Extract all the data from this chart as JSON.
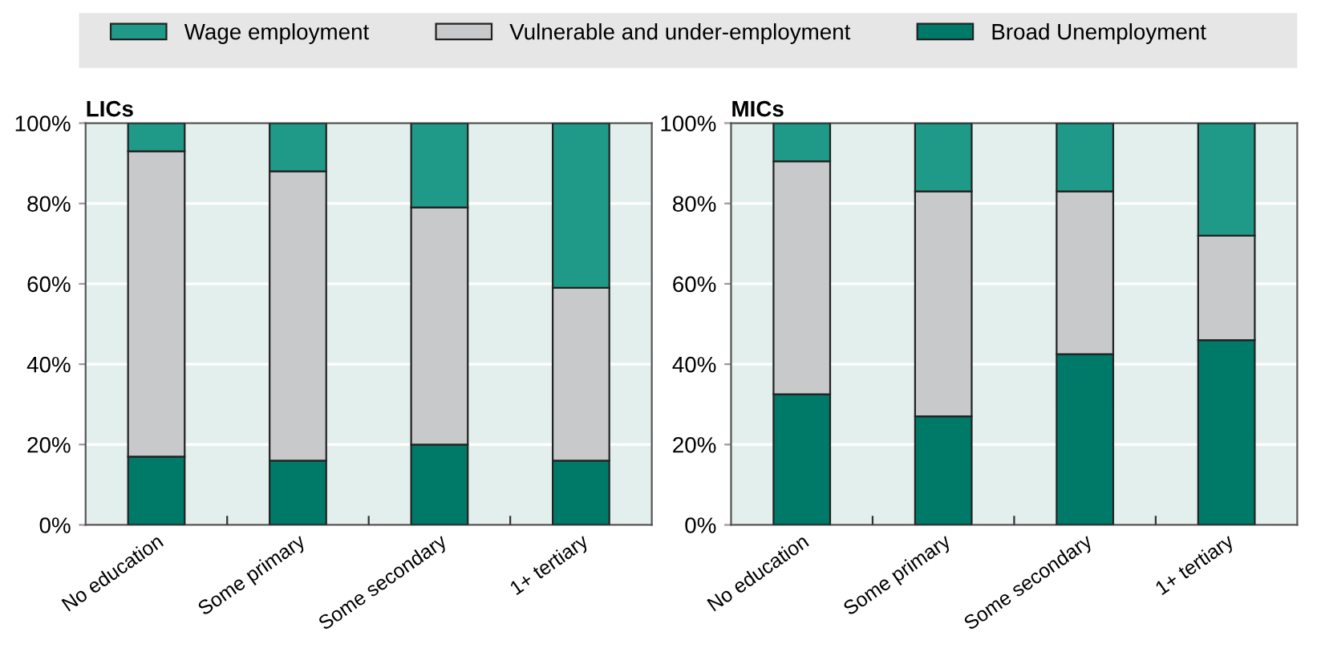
{
  "chart_data": [
    {
      "type": "bar",
      "title": "LICs",
      "stacked": true,
      "categories": [
        "No education",
        "Some primary",
        "Some secondary",
        "1+ tertiary"
      ],
      "ylim": [
        0,
        100
      ],
      "yticks": [
        {
          "value": 0,
          "label": "0%"
        },
        {
          "value": 20,
          "label": "20%"
        },
        {
          "value": 40,
          "label": "40%"
        },
        {
          "value": 60,
          "label": "60%"
        },
        {
          "value": 80,
          "label": "80%"
        },
        {
          "value": 100,
          "label": "100%"
        }
      ],
      "grid": "y",
      "legend": "top",
      "series": [
        {
          "name": "Broad Unemployment",
          "color": "#007a68",
          "values": [
            17,
            16,
            20,
            16
          ]
        },
        {
          "name": "Vulnerable and under-employment",
          "color": "#c8c9cb",
          "values": [
            76,
            72,
            59,
            43
          ]
        },
        {
          "name": "Wage employment",
          "color": "#1f9a88",
          "values": [
            7,
            12,
            21,
            41
          ]
        }
      ]
    },
    {
      "type": "bar",
      "title": "MICs",
      "stacked": true,
      "categories": [
        "No education",
        "Some primary",
        "Some secondary",
        "1+ tertiary"
      ],
      "ylim": [
        0,
        100
      ],
      "yticks": [
        {
          "value": 0,
          "label": "0%"
        },
        {
          "value": 20,
          "label": "20%"
        },
        {
          "value": 40,
          "label": "40%"
        },
        {
          "value": 60,
          "label": "60%"
        },
        {
          "value": 80,
          "label": "80%"
        },
        {
          "value": 100,
          "label": "100%"
        }
      ],
      "grid": "y",
      "series": [
        {
          "color": "#007a68",
          "values": [
            32.5,
            27,
            42.5,
            46
          ]
        },
        {
          "color": "#c8c9cb",
          "values": [
            58,
            56,
            40.5,
            26
          ]
        },
        {
          "color": "#1f9a88",
          "values": [
            9.5,
            17,
            17,
            28
          ]
        }
      ]
    }
  ]
}
